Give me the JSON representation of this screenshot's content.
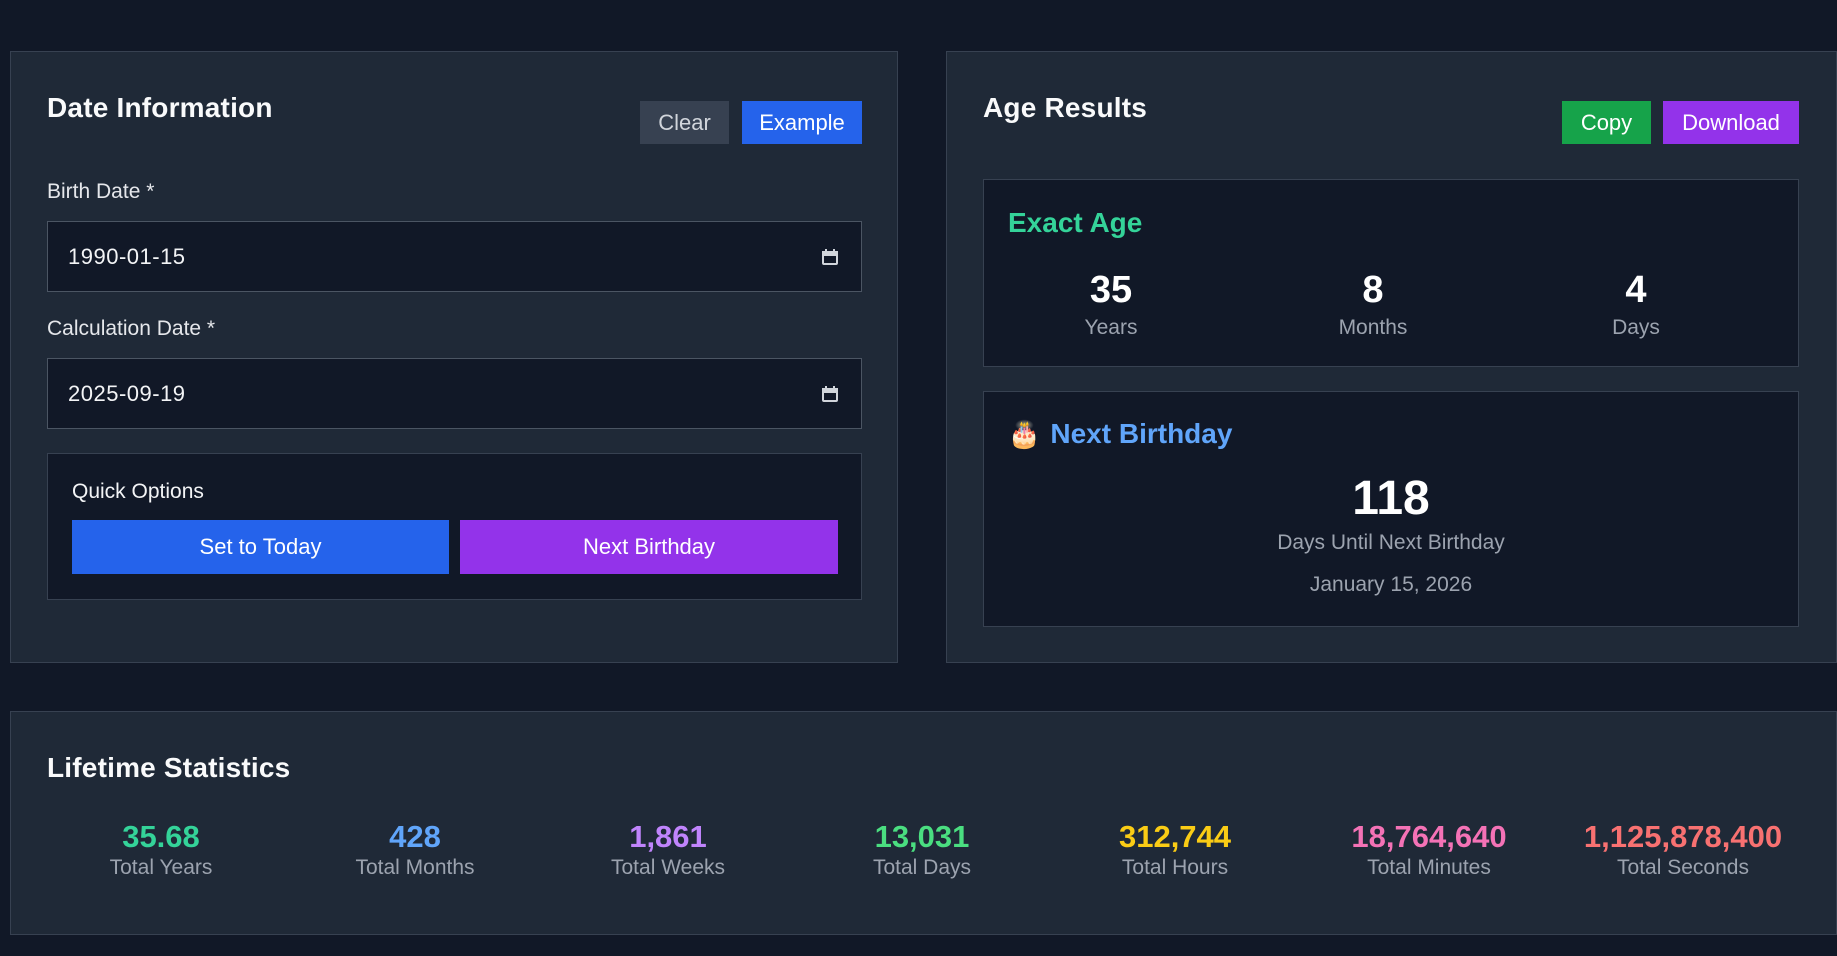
{
  "date_info": {
    "title": "Date Information",
    "clear_label": "Clear",
    "example_label": "Example",
    "birth_date_label": "Birth Date *",
    "birth_date_value": "1990-01-15",
    "calc_date_label": "Calculation Date *",
    "calc_date_value": "2025-09-19",
    "quick_options": {
      "title": "Quick Options",
      "set_today_label": "Set to Today",
      "next_birthday_label": "Next Birthday"
    }
  },
  "age_results": {
    "title": "Age Results",
    "copy_label": "Copy",
    "download_label": "Download",
    "exact_age": {
      "title": "Exact Age",
      "years": "35",
      "years_label": "Years",
      "months": "8",
      "months_label": "Months",
      "days": "4",
      "days_label": "Days"
    },
    "next_birthday": {
      "icon": "🎂",
      "title": "Next Birthday",
      "days": "118",
      "days_label": "Days Until Next Birthday",
      "date": "January 15, 2026"
    }
  },
  "lifetime_stats": {
    "title": "Lifetime Statistics",
    "items": [
      {
        "value": "35.68",
        "label": "Total Years",
        "color": "#34d399"
      },
      {
        "value": "428",
        "label": "Total Months",
        "color": "#60a5fa"
      },
      {
        "value": "1,861",
        "label": "Total Weeks",
        "color": "#c084fc"
      },
      {
        "value": "13,031",
        "label": "Total Days",
        "color": "#4ade80"
      },
      {
        "value": "312,744",
        "label": "Total Hours",
        "color": "#facc15"
      },
      {
        "value": "18,764,640",
        "label": "Total Minutes",
        "color": "#f472b6"
      },
      {
        "value": "1,125,878,400",
        "label": "Total Seconds",
        "color": "#f87171"
      }
    ]
  },
  "colors": {
    "background": "#111827",
    "panel": "#1f2937",
    "blue": "#2563eb",
    "purple": "#9333ea",
    "green": "#16a34a",
    "gray_button": "#374151",
    "exact_age_title": "#34d399",
    "next_birthday_title": "#60a5fa"
  }
}
